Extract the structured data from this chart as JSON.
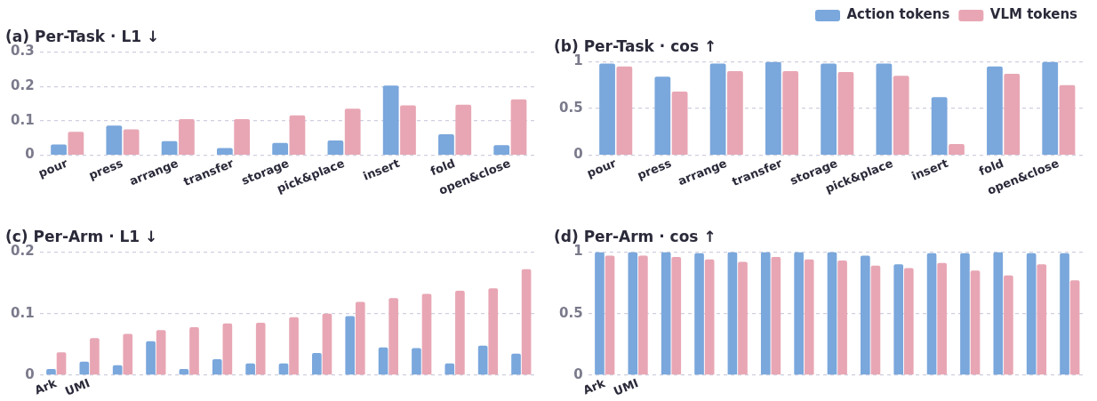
{
  "chart_data": [
    {
      "type": "bar",
      "title": "(a) Per-Task · L1 ↓",
      "categories": [
        "pour",
        "press",
        "arrange",
        "transfer",
        "storage",
        "pick&place",
        "insert",
        "fold",
        "open&close"
      ],
      "series": [
        {
          "color": "#7aa7dc",
          "values": [
            0.031,
            0.086,
            0.041,
            0.021,
            0.036,
            0.043,
            0.202,
            0.061,
            0.029
          ]
        },
        {
          "color": "#e8a6b4",
          "values": [
            0.068,
            0.075,
            0.105,
            0.105,
            0.116,
            0.135,
            0.145,
            0.147,
            0.162
          ]
        }
      ],
      "ylim": [
        0,
        0.3
      ],
      "yticks": [
        0,
        0.1,
        0.2,
        0.3
      ],
      "grid": "y"
    },
    {
      "type": "bar",
      "title": "(b) Per-Task · cos ↑",
      "categories": [
        "pour",
        "press",
        "arrange",
        "transfer",
        "storage",
        "pick&place",
        "insert",
        "fold",
        "open&close"
      ],
      "series": [
        {
          "name": "Action tokens",
          "color": "#7aa7dc",
          "values": [
            0.98,
            0.84,
            0.98,
            1.0,
            0.98,
            0.98,
            0.62,
            0.95,
            1.0
          ]
        },
        {
          "name": "VLM tokens",
          "color": "#e8a6b4",
          "values": [
            0.95,
            0.68,
            0.9,
            0.9,
            0.89,
            0.85,
            0.12,
            0.87,
            0.75
          ]
        }
      ],
      "ylim": [
        0,
        1
      ],
      "yticks": [
        0,
        0.5,
        1
      ],
      "grid": "y",
      "legend": "top right"
    },
    {
      "type": "bar",
      "title": "(c) Per-Arm · L1 ↓",
      "categories": [
        "Ark",
        "UMI",
        null,
        null,
        null,
        null,
        null,
        null,
        null,
        null,
        null,
        null,
        null,
        null,
        null
      ],
      "series": [
        {
          "color": "#7aa7dc",
          "values": [
            0.01,
            0.022,
            0.016,
            0.055,
            0.01,
            0.026,
            0.019,
            0.019,
            0.036,
            0.096,
            0.045,
            0.044,
            0.019,
            0.048,
            0.035
          ]
        },
        {
          "color": "#e8a6b4",
          "values": [
            0.037,
            0.06,
            0.067,
            0.073,
            0.078,
            0.084,
            0.085,
            0.094,
            0.1,
            0.119,
            0.125,
            0.132,
            0.137,
            0.141,
            0.172
          ]
        }
      ],
      "ylim": [
        0,
        0.2
      ],
      "yticks": [
        0,
        0.1,
        0.2
      ],
      "grid": "y"
    },
    {
      "type": "bar",
      "title": "(d) Per-Arm · cos ↑",
      "categories": [
        "Ark",
        "UMI",
        null,
        null,
        null,
        null,
        null,
        null,
        null,
        null,
        null,
        null,
        null,
        null,
        null
      ],
      "series": [
        {
          "color": "#7aa7dc",
          "values": [
            1.0,
            1.0,
            1.0,
            0.99,
            1.0,
            1.0,
            1.0,
            1.0,
            0.97,
            0.9,
            0.99,
            0.99,
            1.0,
            0.99,
            0.99
          ]
        },
        {
          "color": "#e8a6b4",
          "values": [
            0.97,
            0.97,
            0.96,
            0.94,
            0.92,
            0.96,
            0.94,
            0.93,
            0.89,
            0.87,
            0.91,
            0.85,
            0.81,
            0.9,
            0.77
          ]
        }
      ],
      "ylim": [
        0,
        1
      ],
      "yticks": [
        0,
        0.5,
        1
      ],
      "grid": "y"
    }
  ]
}
